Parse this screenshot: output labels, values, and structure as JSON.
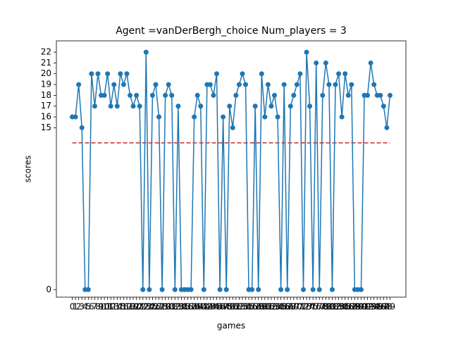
{
  "chart_data": {
    "type": "line",
    "title": "Agent =vanDerBergh_choice Num_players = 3",
    "xlabel": "games",
    "ylabel": "scores",
    "x": [
      0,
      1,
      2,
      3,
      4,
      5,
      6,
      7,
      8,
      9,
      10,
      11,
      12,
      13,
      14,
      15,
      16,
      17,
      18,
      19,
      20,
      21,
      22,
      23,
      24,
      25,
      26,
      27,
      28,
      29,
      30,
      31,
      32,
      33,
      34,
      35,
      36,
      37,
      38,
      39,
      40,
      41,
      42,
      43,
      44,
      45,
      46,
      47,
      48,
      49,
      50,
      51,
      52,
      53,
      54,
      55,
      56,
      57,
      58,
      59,
      60,
      61,
      62,
      63,
      64,
      65,
      66,
      67,
      68,
      69,
      70,
      71,
      72,
      73,
      74,
      75,
      76,
      77,
      78,
      79,
      80,
      81,
      82,
      83,
      84,
      85,
      86,
      87,
      88,
      89,
      90,
      91,
      92,
      93,
      94,
      95,
      96,
      97,
      98,
      99
    ],
    "series": [
      {
        "color": "#1f77b4",
        "values": [
          16,
          16,
          19,
          15,
          0,
          0,
          20,
          17,
          20,
          18,
          18,
          20,
          17,
          19,
          17,
          20,
          19,
          20,
          18,
          17,
          18,
          17,
          0,
          22,
          0,
          18,
          19,
          16,
          0,
          18,
          19,
          18,
          0,
          17,
          0,
          0,
          0,
          0,
          16,
          18,
          17,
          0,
          19,
          19,
          18,
          20,
          0,
          16,
          0,
          17,
          15,
          18,
          19,
          20,
          19,
          0,
          0,
          17,
          0,
          20,
          16,
          19,
          17,
          18,
          16,
          0,
          19,
          0,
          17,
          18,
          19,
          20,
          0,
          22,
          17,
          0,
          21,
          0,
          18,
          21,
          19,
          0,
          19,
          20,
          16,
          20,
          18,
          19,
          0,
          0,
          0,
          18,
          18,
          21,
          19,
          18,
          18,
          17,
          15,
          18
        ]
      }
    ],
    "hline": {
      "value": 13.6,
      "color": "#d62728"
    },
    "xlim": [
      -4.95,
      103.95
    ],
    "ylim": [
      -0.7,
      23.05
    ],
    "xticks": [
      0,
      1,
      2,
      3,
      4,
      5,
      6,
      7,
      8,
      9,
      10,
      11,
      12,
      13,
      14,
      15,
      16,
      17,
      18,
      19,
      20,
      21,
      22,
      23,
      24,
      25,
      26,
      27,
      28,
      29,
      30,
      31,
      32,
      33,
      34,
      35,
      36,
      37,
      38,
      39,
      40,
      41,
      42,
      43,
      44,
      45,
      46,
      47,
      48,
      49,
      50,
      51,
      52,
      53,
      54,
      55,
      56,
      57,
      58,
      59,
      60,
      61,
      62,
      63,
      64,
      65,
      66,
      67,
      68,
      69,
      70,
      71,
      72,
      73,
      74,
      75,
      76,
      77,
      78,
      79,
      80,
      81,
      82,
      83,
      84,
      85,
      86,
      87,
      88,
      89,
      90,
      91,
      92,
      93,
      94,
      95,
      96,
      97,
      98,
      99
    ],
    "yticks": [
      0,
      15,
      16,
      17,
      18,
      19,
      20,
      21,
      22
    ],
    "grid": false
  }
}
